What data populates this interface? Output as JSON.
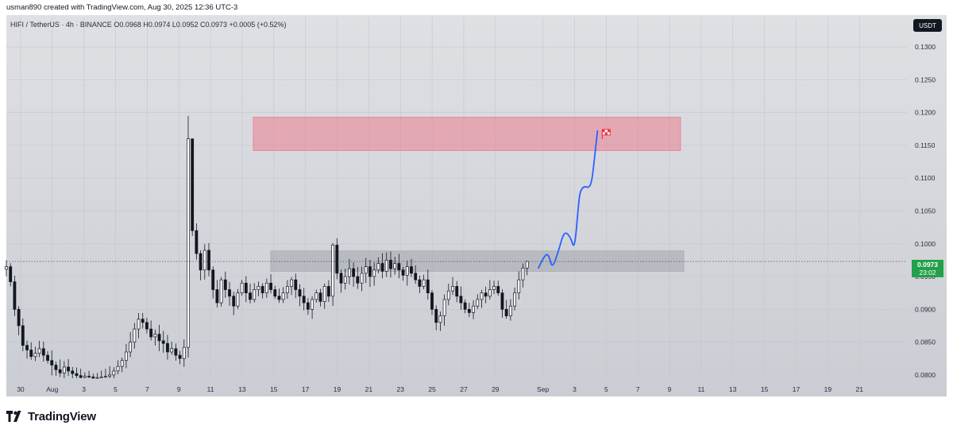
{
  "header": {
    "credit": "usman890 created with TradingView.com, Aug 30, 2025 12:36 UTC-3"
  },
  "symbol_line": "HIFI / TetherUS · 4h · BINANCE  O0.0968  H0.0974  L0.0952  C0.0973  +0.0005 (+0.52%)",
  "currency_button": "USDT",
  "last_price": {
    "value": "0.0973",
    "countdown": "23:02",
    "color": "#22a14a"
  },
  "footer": {
    "brand": "TradingView"
  },
  "colors": {
    "candle": "#131722",
    "resistance_zone": "#f06478",
    "support_zone": "#9a9ca3",
    "projection": "#2962ff",
    "target_flag": "#f23645"
  },
  "icons": [
    "tradingview-logo-icon",
    "target-flag-icon"
  ],
  "chart_data": {
    "type": "candlestick",
    "symbol": "HIFI / TetherUS",
    "interval": "4h",
    "exchange": "BINANCE",
    "ohlc": {
      "open": 0.0968,
      "high": 0.0974,
      "low": 0.0952,
      "close": 0.0973,
      "change": 0.0005,
      "change_pct": 0.52
    },
    "ylim": [
      0.0795,
      0.1345
    ],
    "y_ticks": [
      "0.0800",
      "0.0850",
      "0.0900",
      "0.0950",
      "0.1000",
      "0.1050",
      "0.1100",
      "0.1150",
      "0.1200",
      "0.1250",
      "0.1300"
    ],
    "x_ticks": [
      {
        "label": "30",
        "d": -2
      },
      {
        "label": "Aug",
        "d": 0
      },
      {
        "label": "3",
        "d": 2
      },
      {
        "label": "5",
        "d": 4
      },
      {
        "label": "7",
        "d": 6
      },
      {
        "label": "9",
        "d": 8
      },
      {
        "label": "11",
        "d": 10
      },
      {
        "label": "13",
        "d": 12
      },
      {
        "label": "15",
        "d": 14
      },
      {
        "label": "17",
        "d": 16
      },
      {
        "label": "19",
        "d": 18
      },
      {
        "label": "21",
        "d": 20
      },
      {
        "label": "23",
        "d": 22
      },
      {
        "label": "25",
        "d": 24
      },
      {
        "label": "27",
        "d": 26
      },
      {
        "label": "29",
        "d": 28
      },
      {
        "label": "Sep",
        "d": 31
      },
      {
        "label": "3",
        "d": 33
      },
      {
        "label": "5",
        "d": 35
      },
      {
        "label": "7",
        "d": 37
      },
      {
        "label": "9",
        "d": 39
      },
      {
        "label": "11",
        "d": 41
      },
      {
        "label": "13",
        "d": 43
      },
      {
        "label": "15",
        "d": 45
      },
      {
        "label": "17",
        "d": 47
      },
      {
        "label": "19",
        "d": 49
      },
      {
        "label": "21",
        "d": 51
      }
    ],
    "x_domain_days": [
      -2.9,
      54.0
    ],
    "last_price": 0.0973,
    "zones": [
      {
        "name": "resistance",
        "x0": 12.7,
        "x1": 39.7,
        "y0": 0.1142,
        "y1": 0.1193
      },
      {
        "name": "support",
        "x0": 13.8,
        "x1": 39.9,
        "y0": 0.0958,
        "y1": 0.0989
      }
    ],
    "projection": {
      "x": [
        30.72,
        31.0,
        31.25,
        31.4,
        31.6,
        32.0,
        32.35,
        32.75,
        33.0,
        33.25,
        33.35,
        33.6,
        33.9,
        34.1,
        34.3,
        34.45
      ],
      "y": [
        0.0963,
        0.0977,
        0.0985,
        0.098,
        0.0962,
        0.099,
        0.102,
        0.101,
        0.099,
        0.106,
        0.108,
        0.1088,
        0.1085,
        0.1095,
        0.114,
        0.1172
      ]
    },
    "target_flag": {
      "x": 34.75,
      "y": 0.1167
    },
    "candle_x_range": [
      -2.9,
      30.0
    ],
    "candle_closes": [
      0.0965,
      0.0942,
      0.09,
      0.0875,
      0.0845,
      0.0838,
      0.0828,
      0.0833,
      0.084,
      0.083,
      0.0822,
      0.0815,
      0.0808,
      0.0803,
      0.0812,
      0.0806,
      0.0802,
      0.0799,
      0.0796,
      0.0798,
      0.0797,
      0.0795,
      0.0796,
      0.0797,
      0.0798,
      0.08,
      0.0806,
      0.0813,
      0.0822,
      0.0835,
      0.085,
      0.087,
      0.0885,
      0.088,
      0.087,
      0.0858,
      0.0862,
      0.0852,
      0.0848,
      0.0835,
      0.084,
      0.083,
      0.0825,
      0.0842,
      0.116,
      0.102,
      0.0985,
      0.096,
      0.099,
      0.096,
      0.093,
      0.091,
      0.0945,
      0.093,
      0.092,
      0.0905,
      0.0925,
      0.094,
      0.0925,
      0.0915,
      0.093,
      0.0935,
      0.0925,
      0.094,
      0.093,
      0.092,
      0.0915,
      0.0925,
      0.0935,
      0.0945,
      0.093,
      0.092,
      0.091,
      0.09,
      0.0915,
      0.0925,
      0.0912,
      0.0935,
      0.092,
      0.0998,
      0.0955,
      0.094,
      0.095,
      0.0962,
      0.095,
      0.094,
      0.0955,
      0.0965,
      0.095,
      0.096,
      0.097,
      0.0958,
      0.0975,
      0.0962,
      0.097,
      0.096,
      0.0952,
      0.0965,
      0.0955,
      0.0945,
      0.0935,
      0.0945,
      0.0925,
      0.09,
      0.088,
      0.089,
      0.0915,
      0.0928,
      0.0935,
      0.092,
      0.091,
      0.09,
      0.0895,
      0.0905,
      0.0915,
      0.0925,
      0.092,
      0.093,
      0.0935,
      0.0925,
      0.09,
      0.089,
      0.0905,
      0.0925,
      0.0945,
      0.0963,
      0.0973
    ]
  }
}
